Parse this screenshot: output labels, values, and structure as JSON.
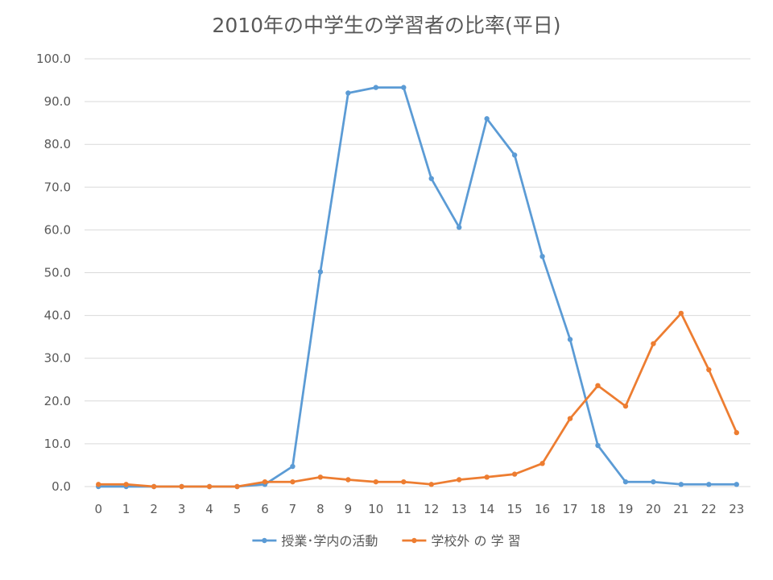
{
  "chart_data": {
    "type": "line",
    "title": "2010年の中学生の学習者の比率(平日)",
    "xlabel": "",
    "ylabel": "",
    "x": [
      0,
      1,
      2,
      3,
      4,
      5,
      6,
      7,
      8,
      9,
      10,
      11,
      12,
      13,
      14,
      15,
      16,
      17,
      18,
      19,
      20,
      21,
      22,
      23
    ],
    "ylim": [
      0,
      100
    ],
    "yticks": [
      "0.0",
      "10.0",
      "20.0",
      "30.0",
      "40.0",
      "50.0",
      "60.0",
      "70.0",
      "80.0",
      "90.0",
      "100.0"
    ],
    "grid": true,
    "legend_position": "bottom",
    "series": [
      {
        "name": "授業･学内の活動",
        "color": "#5b9bd5",
        "values": [
          0.0,
          0.0,
          0.0,
          0.0,
          0.0,
          0.0,
          0.5,
          4.7,
          50.2,
          92.0,
          93.3,
          93.3,
          72.0,
          60.6,
          86.0,
          77.5,
          53.8,
          34.4,
          9.6,
          1.1,
          1.1,
          0.5,
          0.5,
          0.5
        ]
      },
      {
        "name": "学校外 の 学 習",
        "color": "#ed7d31",
        "values": [
          0.5,
          0.5,
          0.0,
          0.0,
          0.0,
          0.0,
          1.1,
          1.1,
          2.2,
          1.6,
          1.1,
          1.1,
          0.5,
          1.6,
          2.2,
          2.9,
          5.4,
          15.9,
          23.6,
          18.8,
          33.4,
          40.5,
          27.3,
          12.6
        ]
      }
    ]
  }
}
